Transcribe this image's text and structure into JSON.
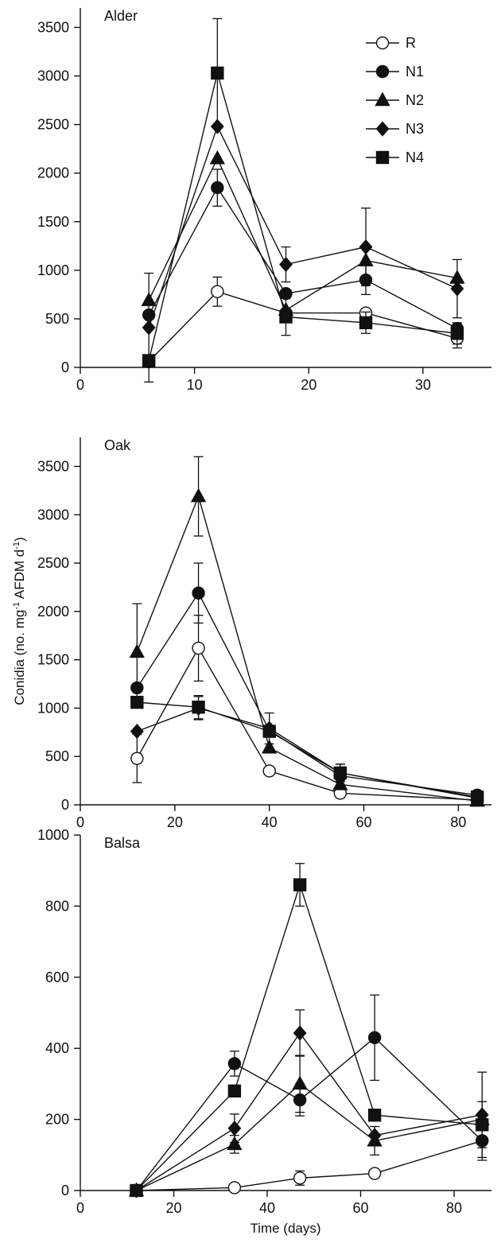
{
  "figure": {
    "ylabel": "Conidia (no. mg-1 AFDM d-1)",
    "ylabel_parts": [
      "Conidia (no. mg",
      "-1",
      " AFDM d",
      "-1",
      ")"
    ],
    "xlabel": "Time (days)"
  },
  "legend": [
    "R",
    "N1",
    "N2",
    "N3",
    "N4"
  ],
  "series_styles": [
    {
      "name": "R",
      "marker": "circle",
      "filled": false
    },
    {
      "name": "N1",
      "marker": "circle",
      "filled": true
    },
    {
      "name": "N2",
      "marker": "triangle",
      "filled": true
    },
    {
      "name": "N3",
      "marker": "diamond",
      "filled": true
    },
    {
      "name": "N4",
      "marker": "square",
      "filled": true
    }
  ],
  "chart_data": [
    {
      "type": "line",
      "title": "Alder",
      "xlim": [
        0,
        36
      ],
      "ylim": [
        0,
        3700
      ],
      "xticks": [
        0,
        10,
        20,
        30
      ],
      "yticks": [
        0,
        500,
        1000,
        1500,
        2000,
        2500,
        3000,
        3500
      ],
      "x": [
        6,
        12,
        18,
        25,
        33
      ],
      "series": [
        {
          "name": "R",
          "values": [
            60,
            780,
            560,
            560,
            300
          ],
          "err": [
            0,
            150,
            0,
            0,
            100
          ]
        },
        {
          "name": "N1",
          "values": [
            540,
            1850,
            760,
            900,
            400
          ],
          "err": [
            0,
            190,
            0,
            150,
            0
          ]
        },
        {
          "name": "N2",
          "values": [
            690,
            2150,
            590,
            1100,
            920
          ],
          "err": [
            0,
            0,
            0,
            0,
            0
          ]
        },
        {
          "name": "N3",
          "values": [
            410,
            2480,
            1060,
            1240,
            810
          ],
          "err": [
            560,
            0,
            180,
            400,
            300
          ]
        },
        {
          "name": "N4",
          "values": [
            70,
            3030,
            520,
            460,
            350
          ],
          "err": [
            0,
            560,
            190,
            110,
            110
          ]
        }
      ]
    },
    {
      "type": "line",
      "title": "Oak",
      "xlim": [
        0,
        87
      ],
      "ylim": [
        0,
        3800
      ],
      "xticks": [
        0,
        20,
        40,
        60,
        80
      ],
      "yticks": [
        0,
        500,
        1000,
        1500,
        2000,
        2500,
        3000,
        3500
      ],
      "x": [
        12,
        25,
        40,
        55,
        84
      ],
      "series": [
        {
          "name": "R",
          "values": [
            480,
            1620,
            350,
            120,
            50
          ],
          "err": [
            250,
            340,
            0,
            0,
            0
          ]
        },
        {
          "name": "N1",
          "values": [
            1210,
            2190,
            770,
            300,
            100
          ],
          "err": [
            0,
            310,
            0,
            0,
            0
          ]
        },
        {
          "name": "N2",
          "values": [
            1580,
            3190,
            590,
            210,
            40
          ],
          "err": [
            500,
            410,
            0,
            0,
            0
          ]
        },
        {
          "name": "N3",
          "values": [
            760,
            1000,
            790,
            330,
            70
          ],
          "err": [
            0,
            120,
            160,
            90,
            0
          ]
        },
        {
          "name": "N4",
          "values": [
            1060,
            1010,
            760,
            330,
            80
          ],
          "err": [
            0,
            120,
            0,
            90,
            0
          ]
        }
      ]
    },
    {
      "type": "line",
      "title": "Balsa",
      "xlim": [
        0,
        88
      ],
      "ylim": [
        0,
        1000
      ],
      "xticks": [
        0,
        20,
        40,
        60,
        80
      ],
      "yticks": [
        0,
        200,
        400,
        600,
        800,
        1000
      ],
      "x": [
        12,
        33,
        47,
        63,
        86
      ],
      "series": [
        {
          "name": "R",
          "values": [
            0,
            8,
            35,
            48,
            140
          ],
          "err": [
            0,
            0,
            20,
            0,
            0
          ]
        },
        {
          "name": "N1",
          "values": [
            0,
            357,
            255,
            430,
            140
          ],
          "err": [
            0,
            35,
            45,
            120,
            55
          ]
        },
        {
          "name": "N2",
          "values": [
            0,
            130,
            300,
            140,
            200
          ],
          "err": [
            0,
            25,
            80,
            40,
            0
          ]
        },
        {
          "name": "N3",
          "values": [
            0,
            175,
            443,
            155,
            213
          ],
          "err": [
            0,
            40,
            65,
            0,
            120
          ]
        },
        {
          "name": "N4",
          "values": [
            0,
            280,
            860,
            212,
            185
          ],
          "err": [
            0,
            0,
            60,
            0,
            65
          ]
        }
      ]
    }
  ]
}
